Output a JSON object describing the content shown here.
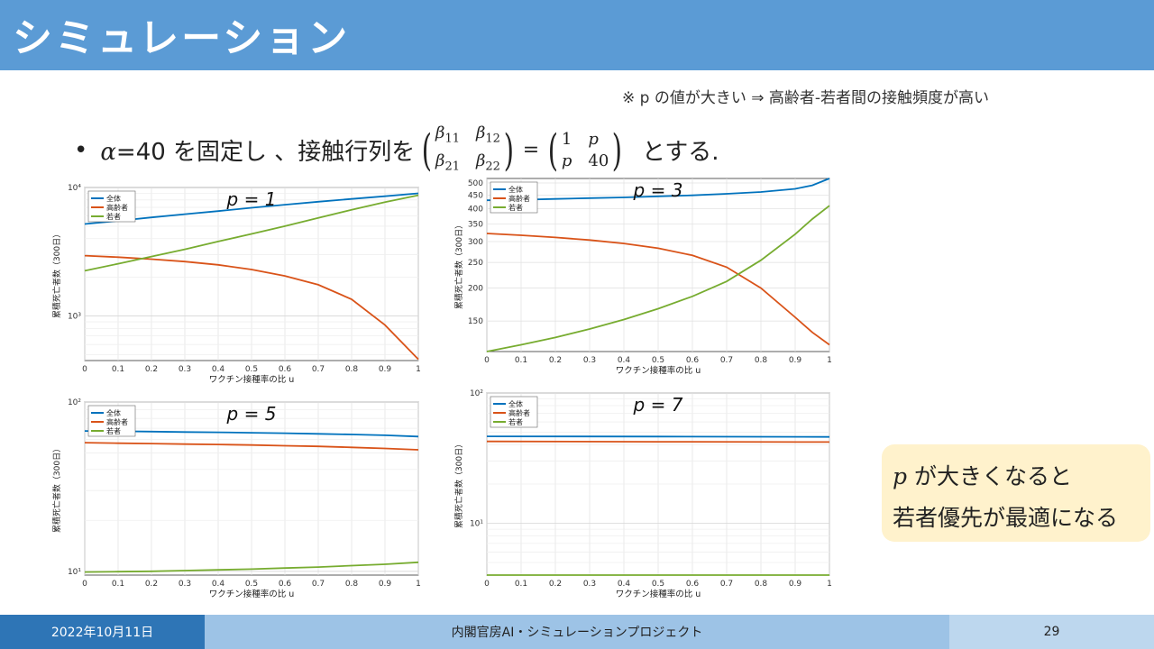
{
  "header": {
    "title": "シミュレーション"
  },
  "note": "※ p の値が大きい ⇒ 高齢者-若者間の接触頻度が高い",
  "bullet": {
    "prefix": "α=40 を固定し 、接触行列を",
    "matrix_left": [
      "β11",
      "β12",
      "β21",
      "β22"
    ],
    "matrix_right": [
      "1",
      "p",
      "p",
      "40"
    ],
    "suffix": "とする."
  },
  "callout": {
    "line1_var": "p",
    "line1": "が大きくなると",
    "line2": "若者優先が最適になる"
  },
  "footer": {
    "date": "2022年10月11日",
    "project": "内閣官房AI・シミュレーションプロジェクト",
    "page": "29"
  },
  "colors": {
    "total": "#0072bd",
    "elderly": "#d95319",
    "young": "#77ac30",
    "title_bar": "#5b9bd5"
  },
  "chart_data": [
    {
      "type": "line",
      "title": "p = 1",
      "xlabel": "ワクチン接種率の比 u",
      "ylabel": "累積死亡者数（300日）",
      "yscale": "log",
      "ylim": [
        450,
        10000
      ],
      "xlim": [
        0,
        1
      ],
      "xticks": [
        "0",
        "0.1",
        "0.2",
        "0.3",
        "0.4",
        "0.5",
        "0.6",
        "0.7",
        "0.8",
        "0.9",
        "1"
      ],
      "yticks_major": [
        "10³",
        "10⁴"
      ],
      "legend": [
        "全体",
        "高齢者",
        "若者"
      ],
      "x": [
        0,
        0.1,
        0.2,
        0.3,
        0.4,
        0.5,
        0.6,
        0.7,
        0.8,
        0.9,
        1.0
      ],
      "series": [
        {
          "name": "全体",
          "values": [
            5200,
            5500,
            5850,
            6200,
            6550,
            6950,
            7350,
            7750,
            8150,
            8550,
            9000
          ]
        },
        {
          "name": "高齢者",
          "values": [
            2950,
            2870,
            2770,
            2650,
            2500,
            2300,
            2050,
            1750,
            1350,
            850,
            460
          ]
        },
        {
          "name": "若者",
          "values": [
            2250,
            2550,
            2900,
            3300,
            3800,
            4350,
            5000,
            5800,
            6700,
            7700,
            8700
          ]
        }
      ]
    },
    {
      "type": "line",
      "title": "p = 3",
      "xlabel": "ワクチン接種率の比 u",
      "ylabel": "累積死亡者数（300日）",
      "yscale": "log",
      "ylim": [
        115,
        520
      ],
      "xlim": [
        0,
        1
      ],
      "xticks": [
        "0",
        "0.1",
        "0.2",
        "0.3",
        "0.4",
        "0.5",
        "0.6",
        "0.7",
        "0.8",
        "0.9",
        "1"
      ],
      "yticks": [
        150,
        200,
        250,
        300,
        350,
        400,
        450,
        500
      ],
      "legend": [
        "全体",
        "高齢者",
        "若者"
      ],
      "x": [
        0,
        0.1,
        0.2,
        0.3,
        0.4,
        0.5,
        0.6,
        0.7,
        0.8,
        0.9,
        0.95,
        1.0
      ],
      "series": [
        {
          "name": "全体",
          "values": [
            430,
            432,
            435,
            438,
            441,
            445,
            449,
            455,
            462,
            475,
            490,
            520
          ]
        },
        {
          "name": "高齢者",
          "values": [
            322,
            317,
            311,
            304,
            295,
            283,
            266,
            240,
            200,
            155,
            136,
            122
          ]
        },
        {
          "name": "若者",
          "values": [
            115,
            122,
            130,
            140,
            152,
            167,
            186,
            212,
            255,
            320,
            365,
            410
          ]
        }
      ]
    },
    {
      "type": "line",
      "title": "p = 5",
      "xlabel": "ワクチン接種率の比 u",
      "ylabel": "累積死亡者数（300日）",
      "yscale": "log",
      "ylim": [
        9.5,
        100
      ],
      "xlim": [
        0,
        1
      ],
      "xticks": [
        "0",
        "0.1",
        "0.2",
        "0.3",
        "0.4",
        "0.5",
        "0.6",
        "0.7",
        "0.8",
        "0.9",
        "1"
      ],
      "yticks_major": [
        "10¹",
        "10²"
      ],
      "legend": [
        "全体",
        "高齢者",
        "若者"
      ],
      "x": [
        0,
        0.1,
        0.2,
        0.3,
        0.4,
        0.5,
        0.6,
        0.7,
        0.8,
        0.9,
        1.0
      ],
      "series": [
        {
          "name": "全体",
          "values": [
            67.5,
            67.2,
            66.9,
            66.5,
            66.2,
            65.8,
            65.4,
            64.9,
            64.3,
            63.6,
            62.5
          ]
        },
        {
          "name": "高齢者",
          "values": [
            57.5,
            57.1,
            56.8,
            56.4,
            56.1,
            55.7,
            55.2,
            54.7,
            54.0,
            53.2,
            52.2
          ]
        },
        {
          "name": "若者",
          "values": [
            9.9,
            9.95,
            10.0,
            10.1,
            10.2,
            10.3,
            10.45,
            10.6,
            10.8,
            11.0,
            11.3
          ]
        }
      ]
    },
    {
      "type": "line",
      "title": "p = 7",
      "xlabel": "ワクチン接種率の比 u",
      "ylabel": "累積死亡者数（300日）",
      "yscale": "log",
      "ylim": [
        4,
        100
      ],
      "xlim": [
        0,
        1
      ],
      "xticks": [
        "0",
        "0.1",
        "0.2",
        "0.3",
        "0.4",
        "0.5",
        "0.6",
        "0.7",
        "0.8",
        "0.9",
        "1"
      ],
      "yticks_major": [
        "10¹",
        "10²"
      ],
      "legend": [
        "全体",
        "高齢者",
        "若者"
      ],
      "x": [
        0,
        0.5,
        1.0
      ],
      "series": [
        {
          "name": "全体",
          "values": [
            46.5,
            46.3,
            46.0
          ]
        },
        {
          "name": "高齢者",
          "values": [
            42.5,
            42.2,
            42.0
          ]
        },
        {
          "name": "若者",
          "values": [
            4.0,
            4.0,
            4.0
          ]
        }
      ]
    }
  ]
}
